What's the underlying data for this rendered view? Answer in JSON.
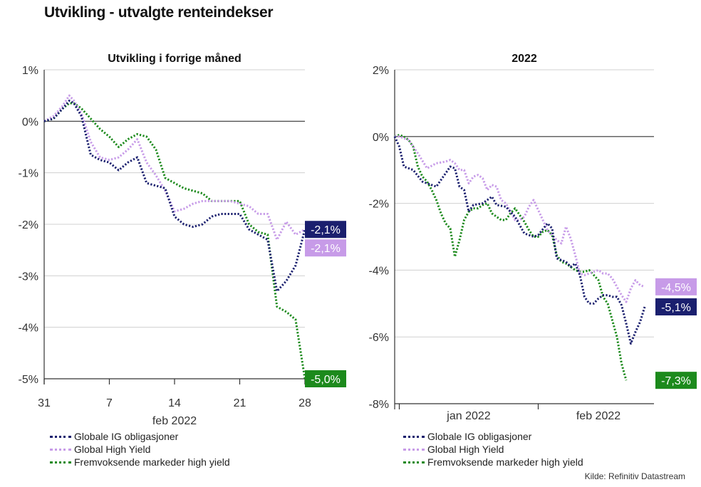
{
  "page": {
    "title": "Utvikling - utvalgte renteindekser",
    "source": "Kilde: Refinitiv Datastream"
  },
  "colors": {
    "ig": "#1a1f6e",
    "hy": "#c79be8",
    "em": "#1c8a1c",
    "grid": "#d0d0d0",
    "zero": "#333333"
  },
  "legend": [
    {
      "key": "ig",
      "label": "Globale IG obligasjoner"
    },
    {
      "key": "hy",
      "label": "Global High Yield"
    },
    {
      "key": "em",
      "label": "Fremvoksende markeder high yield"
    }
  ],
  "chart_data": [
    {
      "type": "line",
      "title": "Utvikling i forrige måned",
      "xlabel": "feb 2022",
      "ylabel": "",
      "x_domain": [
        0,
        28
      ],
      "ylim": [
        -5,
        1
      ],
      "y_ticks": [
        {
          "v": 1,
          "label": "1%"
        },
        {
          "v": 0,
          "label": "0%"
        },
        {
          "v": -1,
          "label": "-1%"
        },
        {
          "v": -2,
          "label": "-2%"
        },
        {
          "v": -3,
          "label": "-3%"
        },
        {
          "v": -4,
          "label": "-4%"
        },
        {
          "v": -5,
          "label": "-5%"
        }
      ],
      "x_ticks": [
        {
          "v": 0,
          "label": "31"
        },
        {
          "v": 7,
          "label": "7"
        },
        {
          "v": 14,
          "label": "14"
        },
        {
          "v": 21,
          "label": "21"
        },
        {
          "v": 28,
          "label": "28"
        }
      ],
      "grid": true,
      "series": [
        {
          "key": "ig",
          "name": "Globale IG obligasjoner",
          "end_label": "-2,1%",
          "points": [
            [
              0,
              0
            ],
            [
              1,
              0.05
            ],
            [
              2,
              0.25
            ],
            [
              2.7,
              0.4
            ],
            [
              3.2,
              0.35
            ],
            [
              4,
              0.1
            ],
            [
              5,
              -0.65
            ],
            [
              6,
              -0.75
            ],
            [
              7,
              -0.8
            ],
            [
              8,
              -0.95
            ],
            [
              9,
              -0.8
            ],
            [
              10,
              -0.7
            ],
            [
              11,
              -1.2
            ],
            [
              12,
              -1.25
            ],
            [
              13,
              -1.3
            ],
            [
              14,
              -1.85
            ],
            [
              15,
              -2.0
            ],
            [
              16,
              -2.05
            ],
            [
              17,
              -2.0
            ],
            [
              18,
              -1.85
            ],
            [
              19,
              -1.8
            ],
            [
              20,
              -1.8
            ],
            [
              21,
              -1.8
            ],
            [
              22,
              -2.1
            ],
            [
              23,
              -2.2
            ],
            [
              24,
              -2.3
            ],
            [
              25,
              -3.3
            ],
            [
              26,
              -3.1
            ],
            [
              27,
              -2.8
            ],
            [
              28,
              -2.1
            ]
          ]
        },
        {
          "key": "hy",
          "name": "Global High Yield",
          "end_label": "-2,1%",
          "points": [
            [
              0,
              0
            ],
            [
              1,
              0.1
            ],
            [
              2,
              0.3
            ],
            [
              2.7,
              0.5
            ],
            [
              3.2,
              0.4
            ],
            [
              4,
              0.15
            ],
            [
              5,
              -0.4
            ],
            [
              6,
              -0.7
            ],
            [
              7,
              -0.75
            ],
            [
              8,
              -0.7
            ],
            [
              9,
              -0.55
            ],
            [
              10,
              -0.35
            ],
            [
              11,
              -0.8
            ],
            [
              12,
              -1.05
            ],
            [
              13,
              -1.35
            ],
            [
              14,
              -1.75
            ],
            [
              15,
              -1.7
            ],
            [
              16,
              -1.6
            ],
            [
              17,
              -1.55
            ],
            [
              18,
              -1.55
            ],
            [
              19,
              -1.55
            ],
            [
              20,
              -1.55
            ],
            [
              21,
              -1.6
            ],
            [
              22,
              -1.65
            ],
            [
              23,
              -1.8
            ],
            [
              24,
              -1.8
            ],
            [
              25,
              -2.3
            ],
            [
              26,
              -1.95
            ],
            [
              27,
              -2.2
            ],
            [
              28,
              -2.1
            ]
          ]
        },
        {
          "key": "em",
          "name": "Fremvoksende markeder high yield",
          "end_label": "-5,0%",
          "points": [
            [
              0,
              0
            ],
            [
              1,
              0.05
            ],
            [
              2,
              0.25
            ],
            [
              2.7,
              0.35
            ],
            [
              3.2,
              0.35
            ],
            [
              4,
              0.25
            ],
            [
              5,
              0.05
            ],
            [
              6,
              -0.15
            ],
            [
              7,
              -0.3
            ],
            [
              8,
              -0.5
            ],
            [
              9,
              -0.35
            ],
            [
              10,
              -0.25
            ],
            [
              11,
              -0.3
            ],
            [
              12,
              -0.55
            ],
            [
              13,
              -1.1
            ],
            [
              14,
              -1.2
            ],
            [
              15,
              -1.3
            ],
            [
              16,
              -1.35
            ],
            [
              17,
              -1.4
            ],
            [
              18,
              -1.55
            ],
            [
              19,
              -1.55
            ],
            [
              20,
              -1.55
            ],
            [
              21,
              -1.55
            ],
            [
              22,
              -2.0
            ],
            [
              23,
              -2.15
            ],
            [
              24,
              -2.2
            ],
            [
              25,
              -3.6
            ],
            [
              26,
              -3.7
            ],
            [
              27,
              -3.85
            ],
            [
              28,
              -5.0
            ]
          ]
        }
      ]
    },
    {
      "type": "line",
      "title": "2022",
      "xlabel": "",
      "ylabel": "",
      "x_domain": [
        0,
        56
      ],
      "ylim": [
        -8,
        2
      ],
      "y_ticks": [
        {
          "v": 2,
          "label": "2%"
        },
        {
          "v": 0,
          "label": "0%"
        },
        {
          "v": -2,
          "label": "-2%"
        },
        {
          "v": -4,
          "label": "-4%"
        },
        {
          "v": -6,
          "label": "-6%"
        },
        {
          "v": -8,
          "label": "-8%"
        }
      ],
      "x_ticks": [
        {
          "v": 1,
          "label": ""
        },
        {
          "v": 31,
          "label": ""
        }
      ],
      "x_category_labels": [
        {
          "v": 16,
          "label": "jan 2022"
        },
        {
          "v": 44,
          "label": "feb 2022"
        }
      ],
      "grid": true,
      "series": [
        {
          "key": "ig",
          "name": "Globale IG obligasjoner",
          "end_label": "-5,1%",
          "points": [
            [
              0,
              0
            ],
            [
              1,
              -0.3
            ],
            [
              2,
              -0.9
            ],
            [
              4,
              -1.0
            ],
            [
              6,
              -1.35
            ],
            [
              8,
              -1.45
            ],
            [
              9,
              -1.5
            ],
            [
              11,
              -1.1
            ],
            [
              12,
              -0.9
            ],
            [
              13,
              -0.95
            ],
            [
              14,
              -1.5
            ],
            [
              15,
              -1.6
            ],
            [
              16,
              -2.25
            ],
            [
              17,
              -2.05
            ],
            [
              19,
              -2.0
            ],
            [
              21,
              -1.8
            ],
            [
              22,
              -2.05
            ],
            [
              24,
              -2.1
            ],
            [
              26,
              -2.4
            ],
            [
              28,
              -2.9
            ],
            [
              30,
              -3.0
            ],
            [
              31,
              -2.95
            ],
            [
              33,
              -2.6
            ],
            [
              34,
              -2.75
            ],
            [
              35,
              -3.65
            ],
            [
              37,
              -3.75
            ],
            [
              38,
              -3.9
            ],
            [
              39,
              -3.8
            ],
            [
              40,
              -4.15
            ],
            [
              41,
              -4.8
            ],
            [
              42,
              -5.0
            ],
            [
              43,
              -5.0
            ],
            [
              44,
              -4.85
            ],
            [
              45,
              -4.75
            ],
            [
              46,
              -4.75
            ],
            [
              47,
              -4.8
            ],
            [
              48,
              -4.8
            ],
            [
              49,
              -5.05
            ],
            [
              50,
              -5.6
            ],
            [
              51,
              -6.2
            ],
            [
              52,
              -5.85
            ],
            [
              53,
              -5.55
            ],
            [
              54,
              -5.1
            ]
          ]
        },
        {
          "key": "hy",
          "name": "Global High Yield",
          "end_label": "-4,5%",
          "points": [
            [
              0,
              0
            ],
            [
              1,
              0.0
            ],
            [
              3,
              -0.1
            ],
            [
              5,
              -0.5
            ],
            [
              7,
              -0.95
            ],
            [
              9,
              -0.8
            ],
            [
              11,
              -0.75
            ],
            [
              12,
              -0.7
            ],
            [
              13,
              -0.8
            ],
            [
              14,
              -1.0
            ],
            [
              15,
              -1.0
            ],
            [
              16,
              -1.4
            ],
            [
              17,
              -1.2
            ],
            [
              18,
              -1.15
            ],
            [
              19,
              -1.25
            ],
            [
              20,
              -1.6
            ],
            [
              21,
              -1.45
            ],
            [
              22,
              -1.5
            ],
            [
              23,
              -1.9
            ],
            [
              24,
              -2.0
            ],
            [
              26,
              -2.5
            ],
            [
              27,
              -2.5
            ],
            [
              28,
              -2.4
            ],
            [
              29,
              -2.1
            ],
            [
              30,
              -1.9
            ],
            [
              31,
              -2.2
            ],
            [
              33,
              -2.8
            ],
            [
              35,
              -3.1
            ],
            [
              36,
              -3.2
            ],
            [
              37,
              -2.7
            ],
            [
              38,
              -3.05
            ],
            [
              39,
              -3.55
            ],
            [
              40,
              -4.1
            ],
            [
              41,
              -4.15
            ],
            [
              42,
              -4.1
            ],
            [
              43,
              -4.05
            ],
            [
              44,
              -4.0
            ],
            [
              45,
              -4.1
            ],
            [
              46,
              -4.1
            ],
            [
              47,
              -4.25
            ],
            [
              48,
              -4.5
            ],
            [
              49,
              -4.75
            ],
            [
              50,
              -4.95
            ],
            [
              51,
              -4.55
            ],
            [
              52,
              -4.3
            ],
            [
              53,
              -4.45
            ],
            [
              54,
              -4.5
            ]
          ]
        },
        {
          "key": "em",
          "name": "Fremvoksende markeder high yield",
          "end_label": "-7,3%",
          "points": [
            [
              0,
              0
            ],
            [
              1,
              0.05
            ],
            [
              2,
              0.0
            ],
            [
              3,
              -0.1
            ],
            [
              4,
              -0.3
            ],
            [
              5,
              -0.9
            ],
            [
              6,
              -1.2
            ],
            [
              7,
              -1.35
            ],
            [
              8,
              -1.6
            ],
            [
              9,
              -1.9
            ],
            [
              10,
              -2.3
            ],
            [
              11,
              -2.6
            ],
            [
              12,
              -2.75
            ],
            [
              13,
              -3.6
            ],
            [
              14,
              -3.1
            ],
            [
              15,
              -2.5
            ],
            [
              16,
              -2.25
            ],
            [
              17,
              -2.15
            ],
            [
              18,
              -2.15
            ],
            [
              19,
              -2.05
            ],
            [
              20,
              -2.0
            ],
            [
              21,
              -2.3
            ],
            [
              23,
              -2.5
            ],
            [
              24,
              -2.5
            ],
            [
              25,
              -2.3
            ],
            [
              26,
              -2.15
            ],
            [
              27,
              -2.35
            ],
            [
              28,
              -2.55
            ],
            [
              29,
              -2.8
            ],
            [
              30,
              -3.0
            ],
            [
              31,
              -3.0
            ],
            [
              32,
              -2.85
            ],
            [
              33,
              -2.8
            ],
            [
              34,
              -2.95
            ],
            [
              35,
              -3.55
            ],
            [
              36,
              -3.75
            ],
            [
              37,
              -3.8
            ],
            [
              38,
              -3.9
            ],
            [
              39,
              -4.0
            ],
            [
              40,
              -4.05
            ],
            [
              41,
              -4.05
            ],
            [
              42,
              -4.0
            ],
            [
              43,
              -4.15
            ],
            [
              44,
              -4.3
            ],
            [
              45,
              -4.8
            ],
            [
              46,
              -5.0
            ],
            [
              47,
              -5.5
            ],
            [
              48,
              -6.0
            ],
            [
              49,
              -6.8
            ],
            [
              50,
              -7.3
            ]
          ]
        }
      ]
    }
  ]
}
